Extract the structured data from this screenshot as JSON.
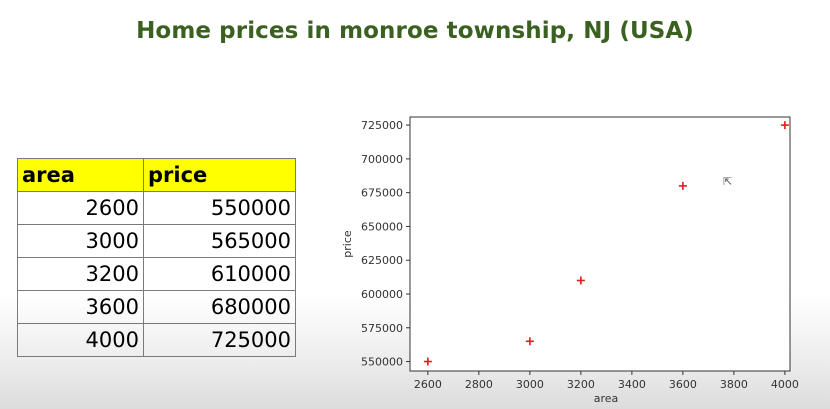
{
  "page_title": "Home prices in monroe township, NJ (USA)",
  "table": {
    "headers": [
      "area",
      "price"
    ],
    "rows": [
      [
        "2600",
        "550000"
      ],
      [
        "3000",
        "565000"
      ],
      [
        "3200",
        "610000"
      ],
      [
        "3600",
        "680000"
      ],
      [
        "4000",
        "725000"
      ]
    ]
  },
  "chart_data": {
    "type": "scatter",
    "title": "",
    "xlabel": "area",
    "ylabel": "price",
    "x": [
      2600,
      3000,
      3200,
      3600,
      4000
    ],
    "y": [
      550000,
      565000,
      610000,
      680000,
      725000
    ],
    "xlim": [
      2530,
      4020
    ],
    "ylim": [
      543000,
      731000
    ],
    "xticks": [
      2600,
      2800,
      3000,
      3200,
      3400,
      3600,
      3800,
      4000
    ],
    "xtick_labels": [
      "2600",
      "2800",
      "3000",
      "3200",
      "3400",
      "3600",
      "3800",
      "4000"
    ],
    "yticks": [
      550000,
      575000,
      600000,
      625000,
      650000,
      675000,
      700000,
      725000
    ],
    "ytick_labels": [
      "550000",
      "575000",
      "600000",
      "625000",
      "650000",
      "675000",
      "700000",
      "725000"
    ],
    "marker": "+",
    "marker_color": "#e31a1c",
    "grid": false
  },
  "colors": {
    "title": "#3b6121",
    "header_bg": "#ffff00"
  }
}
